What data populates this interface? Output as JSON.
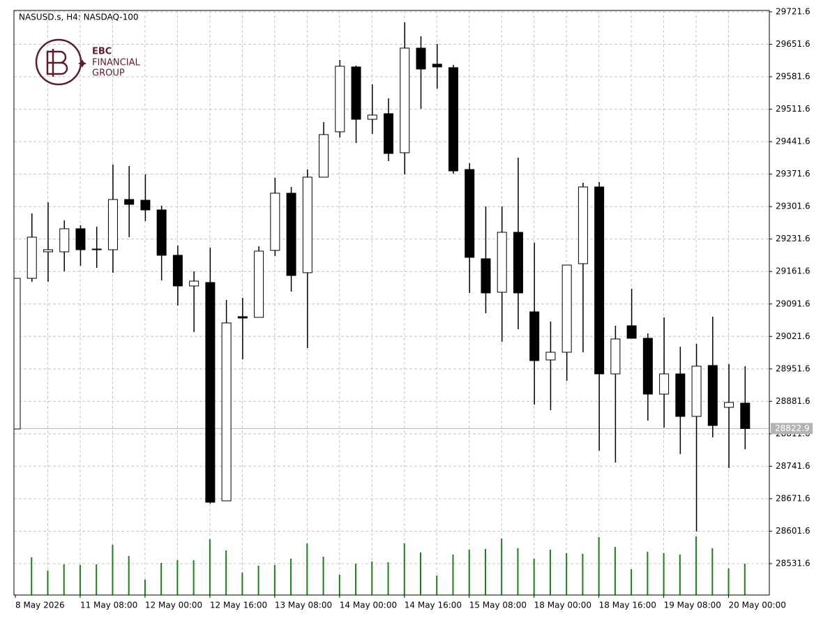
{
  "chart_data": {
    "type": "candlestick",
    "title": "NASUSD.s, H4:  NASDAQ-100",
    "logo_text": [
      "EBC",
      "FINANCIAL",
      "GROUP"
    ],
    "categories": [
      "8 May 2026",
      null,
      null,
      null,
      "11 May 08:00",
      null,
      null,
      null,
      "12 May 00:00",
      null,
      null,
      null,
      "12 May 16:00",
      null,
      null,
      null,
      "13 May 08:00",
      null,
      null,
      null,
      "14 May 00:00",
      null,
      null,
      null,
      "14 May 16:00",
      null,
      null,
      null,
      "15 May 08:00",
      null,
      null,
      null,
      "18 May 00:00",
      null,
      null,
      null,
      "18 May 16:00",
      null,
      null,
      null,
      "19 May 08:00",
      null,
      null,
      null,
      "20 May 00:00",
      null
    ],
    "open": [
      28822.0,
      29146.9,
      29204.1,
      29204.1,
      29253.8,
      29208.6,
      29208.6,
      29316.9,
      29315.4,
      29294.4,
      29196.6,
      29130.4,
      29137.9,
      28667.0,
      29064.2,
      29062.7,
      29207.1,
      29330.5,
      29159.0,
      29365.1,
      29462.9,
      29602.8,
      29489.9,
      29502.0,
      29417.7,
      29643.4,
      29608.8,
      29601.3,
      29381.6,
      29189.1,
      29116.9,
      29246.2,
      29074.7,
      28970.9,
      28987.5,
      29178.5,
      29344.0,
      28940.8,
      29044.6,
      29017.6,
      28897.2,
      28940.8,
      28849.1,
      28958.9,
      28868.6,
      28877.7
    ],
    "high": [
      29146.9,
      29286.9,
      29310.9,
      29271.8,
      29261.3,
      29258.3,
      29392.2,
      29389.2,
      29371.1,
      29303.4,
      29217.7,
      29162.0,
      29213.1,
      29100.3,
      29104.8,
      29216.1,
      29363.6,
      29344.0,
      29381.6,
      29483.9,
      29617.8,
      29605.8,
      29565.2,
      29535.1,
      29699.1,
      29669.0,
      29652.4,
      29607.3,
      29395.2,
      29301.9,
      29301.9,
      29407.2,
      29223.7,
      29053.7,
      29175.5,
      29353.0,
      29354.6,
      29044.6,
      29124.4,
      29028.1,
      29062.7,
      28999.5,
      29005.5,
      29064.2,
      28961.9,
      28957.4
    ],
    "low": [
      28822.0,
      29139.4,
      29139.4,
      29162.0,
      29174.0,
      29169.5,
      29159.0,
      29235.7,
      29270.3,
      29142.4,
      29088.3,
      29031.1,
      28661.0,
      28667.0,
      28972.4,
      29062.7,
      29195.1,
      29118.4,
      28996.5,
      29365.1,
      29450.8,
      29438.8,
      29458.4,
      29399.7,
      29371.1,
      29512.5,
      29556.1,
      29372.6,
      29115.4,
      29071.7,
      29010.0,
      29037.1,
      28874.6,
      28862.6,
      28925.8,
      28987.5,
      28775.4,
      28749.8,
      29017.6,
      28840.0,
      28825.0,
      28767.8,
      28600.8,
      28803.9,
      28737.7,
      28778.4
    ],
    "close": [
      29146.9,
      29235.7,
      29208.6,
      29253.8,
      29208.6,
      29210.1,
      29316.9,
      29306.4,
      29294.4,
      29196.6,
      29130.4,
      29140.9,
      28664.0,
      29050.7,
      29061.2,
      29205.6,
      29330.5,
      29153.0,
      29365.1,
      29456.9,
      29604.3,
      29489.9,
      29499.0,
      29416.2,
      29643.4,
      29598.3,
      29602.8,
      29378.6,
      29192.1,
      29115.4,
      29246.2,
      29115.4,
      28969.4,
      28987.5,
      29175.5,
      29344.0,
      28940.8,
      29016.1,
      29017.6,
      28897.2,
      28940.8,
      28849.1,
      28957.4,
      28829.5,
      28879.2,
      28822.9
    ],
    "volume": [
      null,
      54,
      35,
      44,
      43,
      44,
      72,
      56,
      22,
      46,
      50,
      50,
      80,
      64,
      32,
      42,
      43,
      52,
      74,
      55,
      29,
      45,
      48,
      47,
      74,
      61,
      28,
      58,
      65,
      66,
      81,
      67,
      52,
      65,
      60,
      59,
      83,
      69,
      37,
      62,
      60,
      58,
      84,
      67,
      38,
      45
    ],
    "up_color": "#ffffff",
    "down_color": "#000000",
    "volume_color": "#1a7f1a",
    "current_price": 28822.9,
    "ylim": [
      28463.9,
      29724.6
    ],
    "yticks": [
      29721.6,
      29651.6,
      29581.6,
      29511.6,
      29441.6,
      29371.6,
      29301.6,
      29231.6,
      29161.6,
      29091.6,
      29021.6,
      28951.6,
      28881.6,
      28811.6,
      28741.6,
      28671.6,
      28601.6,
      28531.6
    ],
    "grid": true
  }
}
